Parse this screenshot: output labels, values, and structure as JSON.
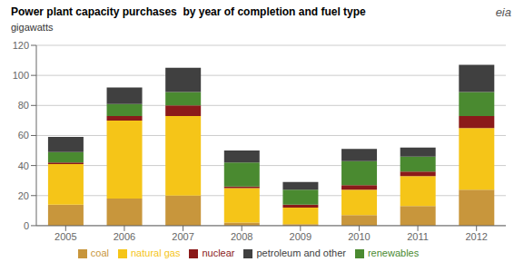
{
  "chart_data": {
    "type": "bar",
    "stacked": true,
    "title": "Power plant capacity purchases  by year of completion and fuel type",
    "subtitle": "gigawatts",
    "annotations": [
      "eia"
    ],
    "categories": [
      "2005",
      "2006",
      "2007",
      "2008",
      "2009",
      "2010",
      "2011",
      "2012"
    ],
    "series": [
      {
        "name": "coal",
        "color": "#c8963c",
        "values": [
          14,
          18,
          20,
          2,
          1,
          7,
          13,
          24
        ]
      },
      {
        "name": "natural gas",
        "color": "#f5c518",
        "values": [
          27,
          52,
          53,
          23,
          11,
          17,
          20,
          41
        ]
      },
      {
        "name": "nuclear",
        "color": "#8b1a1a",
        "values": [
          1,
          3,
          7,
          1,
          2,
          3,
          3,
          8
        ]
      },
      {
        "name": "renewables",
        "color": "#4a8a30",
        "values": [
          7,
          8,
          9,
          16,
          10,
          16,
          10,
          16
        ]
      },
      {
        "name": "petroleum and other",
        "color": "#404040",
        "values": [
          10,
          11,
          16,
          8,
          5,
          8,
          6,
          18
        ]
      }
    ],
    "ylim": [
      0,
      120
    ],
    "yticks": [
      0,
      20,
      40,
      60,
      80,
      100,
      120
    ],
    "grid": true,
    "legend": "bottom"
  }
}
